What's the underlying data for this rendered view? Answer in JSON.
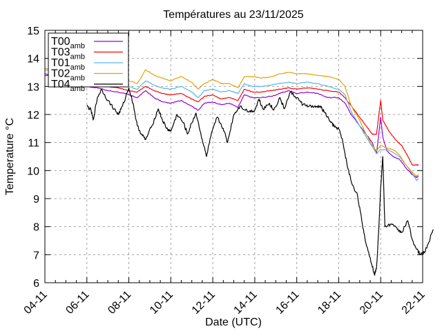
{
  "chart_data": {
    "type": "line",
    "title": "Températures  au 23/11/2025",
    "xlabel": "Date (UTC)",
    "ylabel": "Temperature °C",
    "xlim_days": [
      0,
      18
    ],
    "x_origin_label": "04-11",
    "xticks": [
      {
        "day": 0,
        "label": "04-11"
      },
      {
        "day": 2,
        "label": "06-11"
      },
      {
        "day": 4,
        "label": "08-11"
      },
      {
        "day": 6,
        "label": "10-11"
      },
      {
        "day": 8,
        "label": "12-11"
      },
      {
        "day": 10,
        "label": "14-11"
      },
      {
        "day": 12,
        "label": "16-11"
      },
      {
        "day": 14,
        "label": "18-11"
      },
      {
        "day": 16,
        "label": "20-11"
      },
      {
        "day": 18,
        "label": "22-11"
      }
    ],
    "ylim": [
      6,
      15
    ],
    "yticks": [
      6,
      7,
      8,
      9,
      10,
      11,
      12,
      13,
      14,
      15
    ],
    "grid": true,
    "legend_position": "top-left",
    "series": [
      {
        "name": "T00",
        "subscript": "amb",
        "color": "#9400d3",
        "points": [
          [
            0,
            13.45
          ],
          [
            0.5,
            13.3
          ],
          [
            1,
            13.2
          ],
          [
            1.5,
            13.1
          ],
          [
            2,
            13.0
          ],
          [
            2.5,
            12.95
          ],
          [
            3,
            12.85
          ],
          [
            3.5,
            12.8
          ],
          [
            4,
            12.7
          ],
          [
            4.4,
            12.6
          ],
          [
            4.8,
            12.85
          ],
          [
            5.2,
            12.6
          ],
          [
            5.6,
            12.45
          ],
          [
            6,
            12.4
          ],
          [
            6.5,
            12.5
          ],
          [
            7,
            12.3
          ],
          [
            7.3,
            12.15
          ],
          [
            7.6,
            12.4
          ],
          [
            8,
            12.45
          ],
          [
            8.4,
            12.35
          ],
          [
            8.8,
            12.4
          ],
          [
            9.2,
            12.25
          ],
          [
            9.5,
            12.7
          ],
          [
            9.9,
            12.6
          ],
          [
            10.3,
            12.6
          ],
          [
            10.8,
            12.65
          ],
          [
            11.2,
            12.75
          ],
          [
            11.6,
            12.85
          ],
          [
            12,
            12.75
          ],
          [
            12.5,
            12.8
          ],
          [
            13,
            12.75
          ],
          [
            13.5,
            12.6
          ],
          [
            14,
            12.6
          ],
          [
            14.3,
            12.4
          ],
          [
            14.6,
            12.0
          ],
          [
            15,
            11.6
          ],
          [
            15.3,
            11.3
          ],
          [
            15.6,
            11.0
          ],
          [
            15.8,
            10.6
          ],
          [
            16,
            11.9
          ],
          [
            16.1,
            11.2
          ],
          [
            16.3,
            10.7
          ],
          [
            16.6,
            10.5
          ],
          [
            16.9,
            10.4
          ],
          [
            17.2,
            10.1
          ],
          [
            17.5,
            9.85
          ],
          [
            17.7,
            9.75
          ],
          [
            17.8,
            9.8
          ]
        ]
      },
      {
        "name": "T03",
        "subscript": "amb",
        "color": "#ff0000",
        "points": [
          [
            0,
            13.4
          ],
          [
            0.5,
            13.35
          ],
          [
            1,
            13.3
          ],
          [
            1.5,
            13.2
          ],
          [
            2,
            13.15
          ],
          [
            2.5,
            13.05
          ],
          [
            3,
            13.0
          ],
          [
            3.5,
            12.95
          ],
          [
            4,
            12.85
          ],
          [
            4.4,
            12.8
          ],
          [
            4.8,
            13.0
          ],
          [
            5.2,
            12.85
          ],
          [
            5.6,
            12.75
          ],
          [
            6,
            12.7
          ],
          [
            6.5,
            12.75
          ],
          [
            7,
            12.55
          ],
          [
            7.3,
            12.45
          ],
          [
            7.6,
            12.65
          ],
          [
            8,
            12.7
          ],
          [
            8.4,
            12.55
          ],
          [
            8.8,
            12.6
          ],
          [
            9.2,
            12.5
          ],
          [
            9.5,
            12.9
          ],
          [
            9.9,
            12.8
          ],
          [
            10.3,
            12.8
          ],
          [
            10.8,
            12.85
          ],
          [
            11.2,
            12.9
          ],
          [
            11.6,
            12.95
          ],
          [
            12,
            12.9
          ],
          [
            12.5,
            12.95
          ],
          [
            13,
            12.9
          ],
          [
            13.5,
            12.85
          ],
          [
            14,
            12.8
          ],
          [
            14.3,
            12.6
          ],
          [
            14.6,
            12.3
          ],
          [
            15,
            11.9
          ],
          [
            15.3,
            11.6
          ],
          [
            15.6,
            11.3
          ],
          [
            15.8,
            11.3
          ],
          [
            16,
            12.5
          ],
          [
            16.1,
            11.8
          ],
          [
            16.4,
            11.4
          ],
          [
            16.7,
            11.1
          ],
          [
            17,
            10.9
          ],
          [
            17.3,
            10.5
          ],
          [
            17.5,
            10.2
          ],
          [
            17.7,
            10.2
          ],
          [
            17.8,
            10.2
          ]
        ]
      },
      {
        "name": "T01",
        "subscript": "amb",
        "color": "#56b4e9",
        "points": [
          [
            0,
            13.6
          ],
          [
            0.5,
            13.5
          ],
          [
            1,
            13.4
          ],
          [
            1.5,
            13.35
          ],
          [
            2,
            13.25
          ],
          [
            2.5,
            13.2
          ],
          [
            3,
            13.1
          ],
          [
            3.5,
            13.05
          ],
          [
            4,
            13.0
          ],
          [
            4.4,
            12.9
          ],
          [
            4.8,
            13.2
          ],
          [
            5.2,
            13.05
          ],
          [
            5.6,
            12.95
          ],
          [
            6,
            12.9
          ],
          [
            6.5,
            13.0
          ],
          [
            7,
            12.8
          ],
          [
            7.3,
            12.6
          ],
          [
            7.6,
            12.85
          ],
          [
            8,
            12.9
          ],
          [
            8.4,
            12.8
          ],
          [
            8.8,
            12.85
          ],
          [
            9.2,
            12.75
          ],
          [
            9.5,
            13.1
          ],
          [
            9.9,
            13.0
          ],
          [
            10.3,
            13.0
          ],
          [
            10.8,
            13.05
          ],
          [
            11.2,
            13.1
          ],
          [
            11.6,
            13.15
          ],
          [
            12,
            13.1
          ],
          [
            12.5,
            13.15
          ],
          [
            13,
            13.1
          ],
          [
            13.5,
            13.0
          ],
          [
            14,
            12.9
          ],
          [
            14.3,
            12.7
          ],
          [
            14.6,
            12.1
          ],
          [
            15,
            11.6
          ],
          [
            15.3,
            11.2
          ],
          [
            15.6,
            10.85
          ],
          [
            15.8,
            10.6
          ],
          [
            16,
            10.75
          ],
          [
            16.3,
            10.75
          ],
          [
            16.6,
            10.65
          ],
          [
            16.9,
            10.5
          ],
          [
            17.2,
            10.2
          ],
          [
            17.5,
            9.9
          ],
          [
            17.7,
            9.65
          ],
          [
            17.8,
            9.7
          ]
        ]
      },
      {
        "name": "T02",
        "subscript": "amb",
        "color": "#e69f00",
        "points": [
          [
            0,
            13.65
          ],
          [
            0.5,
            13.55
          ],
          [
            1,
            13.5
          ],
          [
            1.5,
            13.45
          ],
          [
            2,
            13.4
          ],
          [
            2.5,
            13.35
          ],
          [
            3,
            13.3
          ],
          [
            3.5,
            13.25
          ],
          [
            4,
            13.2
          ],
          [
            4.4,
            13.1
          ],
          [
            4.8,
            13.6
          ],
          [
            5.2,
            13.4
          ],
          [
            5.6,
            13.3
          ],
          [
            6,
            13.2
          ],
          [
            6.5,
            13.35
          ],
          [
            7,
            13.15
          ],
          [
            7.3,
            12.9
          ],
          [
            7.6,
            13.1
          ],
          [
            8,
            13.25
          ],
          [
            8.4,
            13.1
          ],
          [
            8.8,
            13.1
          ],
          [
            9.2,
            12.95
          ],
          [
            9.5,
            13.35
          ],
          [
            9.9,
            13.35
          ],
          [
            10.3,
            13.3
          ],
          [
            10.8,
            13.35
          ],
          [
            11.2,
            13.45
          ],
          [
            11.6,
            13.5
          ],
          [
            12,
            13.45
          ],
          [
            12.5,
            13.45
          ],
          [
            13,
            13.4
          ],
          [
            13.5,
            13.35
          ],
          [
            14,
            13.25
          ],
          [
            14.3,
            13.0
          ],
          [
            14.6,
            12.3
          ],
          [
            15,
            11.8
          ],
          [
            15.3,
            11.3
          ],
          [
            15.6,
            10.9
          ],
          [
            15.8,
            10.7
          ],
          [
            16,
            10.9
          ],
          [
            16.3,
            10.8
          ],
          [
            16.6,
            10.75
          ],
          [
            16.9,
            10.55
          ],
          [
            17.2,
            10.2
          ],
          [
            17.5,
            9.95
          ],
          [
            17.7,
            9.8
          ],
          [
            17.8,
            9.85
          ]
        ]
      },
      {
        "name": "T04",
        "subscript": "amb",
        "color": "#000000",
        "points": [
          [
            2,
            12.3
          ],
          [
            2.2,
            12.15
          ],
          [
            2.3,
            11.8
          ],
          [
            2.5,
            12.6
          ],
          [
            2.7,
            12.9
          ],
          [
            3,
            12.5
          ],
          [
            3.3,
            12.2
          ],
          [
            3.5,
            12.0
          ],
          [
            3.7,
            12.3
          ],
          [
            4,
            12.95
          ],
          [
            4.2,
            12.4
          ],
          [
            4.4,
            11.6
          ],
          [
            4.6,
            11.3
          ],
          [
            4.8,
            11.1
          ],
          [
            5.1,
            11.6
          ],
          [
            5.4,
            12.2
          ],
          [
            5.6,
            11.8
          ],
          [
            5.8,
            11.5
          ],
          [
            6,
            11.4
          ],
          [
            6.3,
            12.0
          ],
          [
            6.6,
            11.7
          ],
          [
            6.8,
            11.3
          ],
          [
            7,
            11.7
          ],
          [
            7.2,
            12.05
          ],
          [
            7.5,
            11.1
          ],
          [
            7.7,
            10.5
          ],
          [
            7.9,
            11.2
          ],
          [
            8.2,
            11.9
          ],
          [
            8.5,
            11.5
          ],
          [
            8.7,
            11.0
          ],
          [
            9,
            12.0
          ],
          [
            9.3,
            12.3
          ],
          [
            9.7,
            12.1
          ],
          [
            10,
            12.15
          ],
          [
            10.2,
            12.55
          ],
          [
            10.4,
            12.2
          ],
          [
            10.7,
            12.4
          ],
          [
            10.9,
            12.15
          ],
          [
            11.2,
            12.6
          ],
          [
            11.4,
            12.2
          ],
          [
            11.7,
            12.8
          ],
          [
            12,
            12.6
          ],
          [
            12.3,
            12.35
          ],
          [
            12.6,
            12.3
          ],
          [
            12.9,
            12.25
          ],
          [
            13.1,
            12.3
          ],
          [
            13.3,
            12.1
          ],
          [
            13.6,
            11.75
          ],
          [
            13.8,
            11.55
          ],
          [
            14,
            11.5
          ],
          [
            14.2,
            11.0
          ],
          [
            14.4,
            10.2
          ],
          [
            14.6,
            9.6
          ],
          [
            14.9,
            9.1
          ],
          [
            15.1,
            8.2
          ],
          [
            15.3,
            7.4
          ],
          [
            15.5,
            6.9
          ],
          [
            15.7,
            6.3
          ],
          [
            15.8,
            6.5
          ],
          [
            15.9,
            7.8
          ],
          [
            16.0,
            9.4
          ],
          [
            16.1,
            10.5
          ],
          [
            16.2,
            8.0
          ],
          [
            16.5,
            8.1
          ],
          [
            16.8,
            7.9
          ],
          [
            17.0,
            7.8
          ],
          [
            17.3,
            8.2
          ],
          [
            17.5,
            7.55
          ],
          [
            17.7,
            7.2
          ],
          [
            17.9,
            7.0
          ],
          [
            18.1,
            7.1
          ],
          [
            18.3,
            7.45
          ],
          [
            18.5,
            7.9
          ]
        ]
      }
    ]
  }
}
